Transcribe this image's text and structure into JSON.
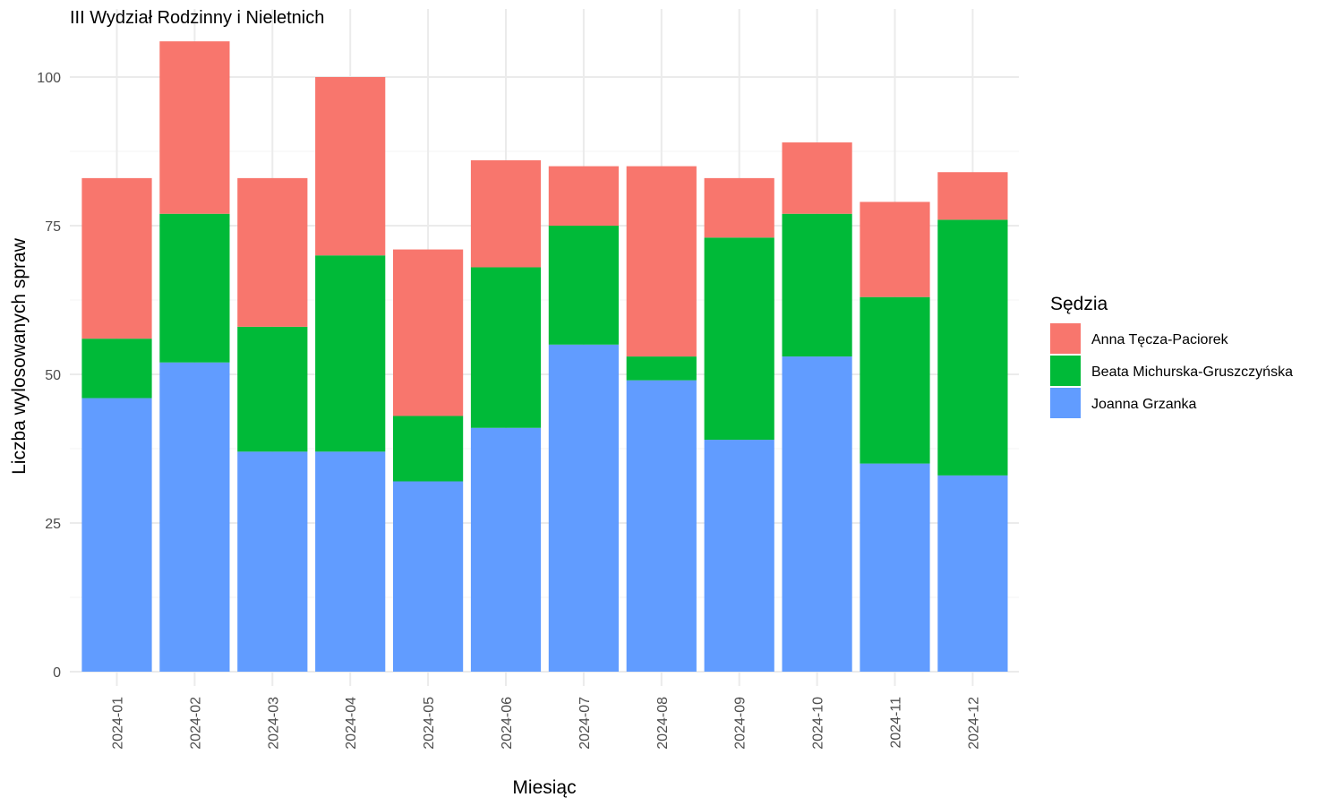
{
  "chart_data": {
    "type": "bar",
    "stacked": true,
    "title": "III Wydział Rodzinny i Nieletnich",
    "xlabel": "Miesiąc",
    "ylabel": "Liczba wylosowanych spraw",
    "ylim": [
      0,
      106
    ],
    "yticks": [
      0,
      25,
      50,
      75,
      100
    ],
    "grid": true,
    "legend": {
      "title": "Sędzia",
      "placement": "right"
    },
    "categories": [
      "2024-01",
      "2024-02",
      "2024-03",
      "2024-04",
      "2024-05",
      "2024-06",
      "2024-07",
      "2024-08",
      "2024-09",
      "2024-10",
      "2024-11",
      "2024-12"
    ],
    "series": [
      {
        "name": "Anna Tęcza-Paciorek",
        "color": "#F8766D",
        "values": [
          27,
          29,
          25,
          30,
          28,
          18,
          10,
          32,
          10,
          12,
          16,
          8
        ]
      },
      {
        "name": "Beata Michurska-Gruszczyńska",
        "color": "#00BA38",
        "values": [
          10,
          25,
          21,
          33,
          11,
          27,
          20,
          4,
          34,
          24,
          28,
          43
        ]
      },
      {
        "name": "Joanna Grzanka",
        "color": "#619CFF",
        "values": [
          46,
          52,
          37,
          37,
          32,
          41,
          55,
          49,
          39,
          53,
          35,
          33
        ]
      }
    ]
  }
}
